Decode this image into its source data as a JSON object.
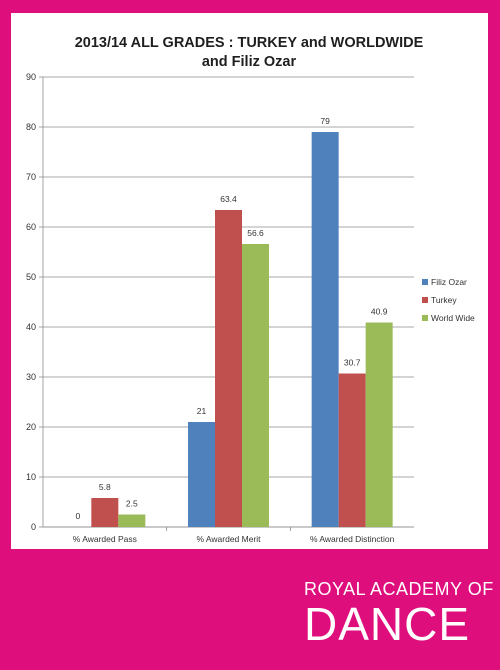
{
  "chart_data": {
    "type": "bar",
    "title_line1": "2013/14 ALL GRADES : TURKEY and WORLDWIDE",
    "title_line2": "and Filiz Ozar",
    "categories": [
      "% Awarded Pass",
      "% Awarded Merit",
      "% Awarded Distinction"
    ],
    "series": [
      {
        "name": "Filiz Ozar",
        "color": "#4f81bd",
        "values": [
          0,
          21,
          79
        ],
        "labels": [
          "0",
          "21",
          "79"
        ]
      },
      {
        "name": "Turkey",
        "color": "#c0504d",
        "values": [
          5.8,
          63.4,
          30.7
        ],
        "labels": [
          "5.8",
          "63.4",
          "30.7"
        ]
      },
      {
        "name": "World Wide",
        "color": "#9bbb59",
        "values": [
          2.5,
          56.6,
          40.9
        ],
        "labels": [
          "2.5",
          "56.6",
          "40.9"
        ]
      }
    ],
    "ylim": [
      0,
      90
    ],
    "yticks": [
      0,
      10,
      20,
      30,
      40,
      50,
      60,
      70,
      80,
      90
    ],
    "grid": true,
    "legend": "right"
  },
  "brand": {
    "line1": "ROYAL ACADEMY OF",
    "line2": "DANCE"
  },
  "colors": {
    "background": "#df0e7d",
    "card": "#ffffff"
  }
}
